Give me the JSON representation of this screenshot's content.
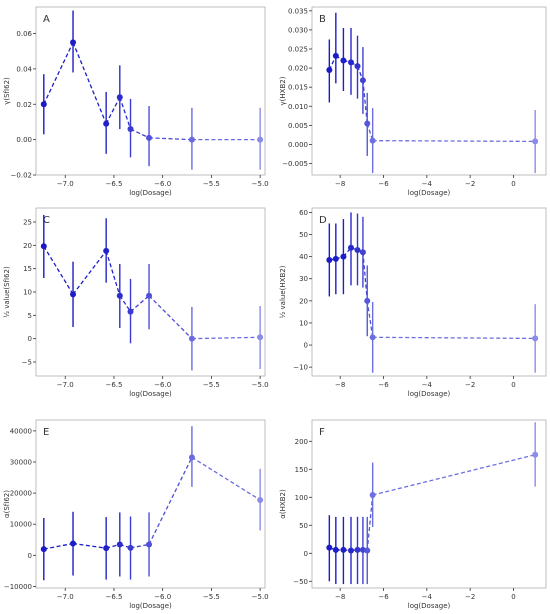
{
  "chart_data": [
    {
      "type": "line",
      "panel_label": "A",
      "xlabel": "log(Dosage)",
      "ylabel": "γ(SfI62)",
      "xlim": [
        -7.3,
        -4.95
      ],
      "ylim": [
        -0.02,
        0.075
      ],
      "xticks": [
        -7.0,
        -6.5,
        -6.0,
        -5.5,
        -5.0
      ],
      "xticklabels": [
        "−7.0",
        "−6.5",
        "−6.0",
        "−5.5",
        "−5.0"
      ],
      "yticks": [
        -0.02,
        0.0,
        0.02,
        0.04,
        0.06
      ],
      "yticklabels": [
        "−0.02",
        "0.00",
        "0.02",
        "0.04",
        "0.06"
      ],
      "grid": false,
      "series": [
        {
          "x": [
            -7.22,
            -6.92,
            -6.58,
            -6.44,
            -6.33,
            -6.14,
            -5.7,
            -5.0
          ],
          "y": [
            0.02,
            0.055,
            0.009,
            0.024,
            0.006,
            0.001,
            0.0,
            0.0
          ],
          "err_low": [
            0.003,
            0.038,
            -0.008,
            0.006,
            -0.01,
            -0.015,
            -0.017,
            -0.017
          ],
          "err_high": [
            0.037,
            0.073,
            0.027,
            0.042,
            0.023,
            0.019,
            0.018,
            0.018
          ]
        }
      ]
    },
    {
      "type": "line",
      "panel_label": "B",
      "xlabel": "log(Dosage)",
      "ylabel": "γ(HXB2)",
      "xlim": [
        -9.3,
        1.5
      ],
      "ylim": [
        -0.008,
        0.036
      ],
      "xticks": [
        -8,
        -6,
        -4,
        -2,
        0
      ],
      "xticklabels": [
        "−8",
        "−6",
        "−4",
        "−2",
        "0"
      ],
      "yticks": [
        -0.005,
        0.0,
        0.005,
        0.01,
        0.015,
        0.02,
        0.025,
        0.03,
        0.035
      ],
      "yticklabels": [
        "−0.005",
        "0.000",
        "0.005",
        "0.010",
        "0.015",
        "0.020",
        "0.025",
        "0.030",
        "0.035"
      ],
      "grid": false,
      "series": [
        {
          "x": [
            -8.5,
            -8.2,
            -7.85,
            -7.5,
            -7.2,
            -6.95,
            -6.75,
            -6.5,
            1.0
          ],
          "y": [
            0.0195,
            0.0232,
            0.022,
            0.0215,
            0.0205,
            0.0168,
            0.0055,
            0.001,
            0.0008
          ],
          "err_low": [
            0.011,
            0.016,
            0.014,
            0.013,
            0.012,
            0.008,
            -0.003,
            -0.0075,
            -0.0075
          ],
          "err_high": [
            0.0275,
            0.0345,
            0.0305,
            0.0305,
            0.0285,
            0.0255,
            0.0135,
            0.0095,
            0.009
          ]
        }
      ]
    },
    {
      "type": "line",
      "panel_label": "C",
      "xlabel": "log(Dosage)",
      "ylabel": "½ value(SfI62)",
      "xlim": [
        -7.3,
        -4.95
      ],
      "ylim": [
        -8,
        28
      ],
      "xticks": [
        -7.0,
        -6.5,
        -6.0,
        -5.5,
        -5.0
      ],
      "xticklabels": [
        "−7.0",
        "−6.5",
        "−6.0",
        "−5.5",
        "−5.0"
      ],
      "yticks": [
        -5,
        0,
        5,
        10,
        15,
        20,
        25
      ],
      "yticklabels": [
        "−5",
        "0",
        "5",
        "10",
        "15",
        "20",
        "25"
      ],
      "grid": false,
      "series": [
        {
          "x": [
            -7.22,
            -6.92,
            -6.58,
            -6.44,
            -6.33,
            -6.14,
            -5.7,
            -5.0
          ],
          "y": [
            19.8,
            9.5,
            18.8,
            9.2,
            5.8,
            9.2,
            0.0,
            0.3
          ],
          "err_low": [
            13.0,
            2.5,
            12.0,
            2.3,
            -1.0,
            2.0,
            -6.8,
            -6.5
          ],
          "err_high": [
            26.5,
            16.5,
            25.8,
            16.0,
            12.8,
            16.0,
            6.8,
            7.0
          ]
        }
      ]
    },
    {
      "type": "line",
      "panel_label": "D",
      "xlabel": "log(Dosage)",
      "ylabel": "½ value(HXB2)",
      "xlim": [
        -9.3,
        1.5
      ],
      "ylim": [
        -14,
        62
      ],
      "xticks": [
        -8,
        -6,
        -4,
        -2,
        0
      ],
      "xticklabels": [
        "−8",
        "−6",
        "−4",
        "−2",
        "0"
      ],
      "yticks": [
        -10,
        0,
        10,
        20,
        30,
        40,
        50,
        60
      ],
      "yticklabels": [
        "−10",
        "0",
        "10",
        "20",
        "30",
        "40",
        "50",
        "60"
      ],
      "grid": false,
      "series": [
        {
          "x": [
            -8.5,
            -8.2,
            -7.85,
            -7.5,
            -7.2,
            -6.95,
            -6.75,
            -6.5,
            1.0
          ],
          "y": [
            38.5,
            39.0,
            40.0,
            44.0,
            43.0,
            42.0,
            20.0,
            3.5,
            3.0
          ],
          "err_low": [
            22.0,
            23.0,
            23.0,
            27.0,
            27.0,
            26.0,
            4.0,
            -12.5,
            -12.5
          ],
          "err_high": [
            55.0,
            55.0,
            57.0,
            60.0,
            59.5,
            58.0,
            36.0,
            19.5,
            18.5
          ]
        }
      ]
    },
    {
      "type": "line",
      "panel_label": "E",
      "xlabel": "log(Dosage)",
      "ylabel": "α(SfI62)",
      "xlim": [
        -7.3,
        -4.95
      ],
      "ylim": [
        -10500,
        43500
      ],
      "xticks": [
        -7.0,
        -6.5,
        -6.0,
        -5.5,
        -5.0
      ],
      "xticklabels": [
        "−7.0",
        "−6.5",
        "−6.0",
        "−5.5",
        "−5.0"
      ],
      "yticks": [
        -10000,
        0,
        10000,
        20000,
        30000,
        40000
      ],
      "yticklabels": [
        "−10000",
        "0",
        "10000",
        "20000",
        "30000",
        "40000"
      ],
      "grid": false,
      "series": [
        {
          "x": [
            -7.22,
            -6.92,
            -6.58,
            -6.44,
            -6.33,
            -6.14,
            -5.7,
            -5.0
          ],
          "y": [
            2000,
            3800,
            2300,
            3500,
            2400,
            3500,
            31500,
            17800
          ],
          "err_low": [
            -8000,
            -6500,
            -7800,
            -6800,
            -7800,
            -6800,
            22000,
            8000
          ],
          "err_high": [
            12000,
            14000,
            12300,
            13800,
            12500,
            13800,
            41500,
            27800
          ]
        }
      ]
    },
    {
      "type": "line",
      "panel_label": "F",
      "xlabel": "log(Dosage)",
      "ylabel": "α(HXB2)",
      "xlim": [
        -9.3,
        1.5
      ],
      "ylim": [
        -62,
        238
      ],
      "xticks": [
        -8,
        -6,
        -4,
        -2,
        0
      ],
      "xticklabels": [
        "−8",
        "−6",
        "−4",
        "−2",
        "0"
      ],
      "yticks": [
        -50,
        0,
        50,
        100,
        150,
        200
      ],
      "yticklabels": [
        "−50",
        "0",
        "50",
        "100",
        "150",
        "200"
      ],
      "grid": false,
      "series": [
        {
          "x": [
            -8.5,
            -8.2,
            -7.85,
            -7.5,
            -7.2,
            -6.95,
            -6.75,
            -6.5,
            1.0
          ],
          "y": [
            10,
            6,
            6,
            5,
            6,
            6,
            5,
            104,
            176
          ],
          "err_low": [
            -50,
            -55,
            -55,
            -55,
            -55,
            -55,
            -55,
            47,
            119
          ],
          "err_high": [
            68,
            65,
            65,
            65,
            65,
            65,
            65,
            162,
            234
          ]
        }
      ]
    }
  ]
}
